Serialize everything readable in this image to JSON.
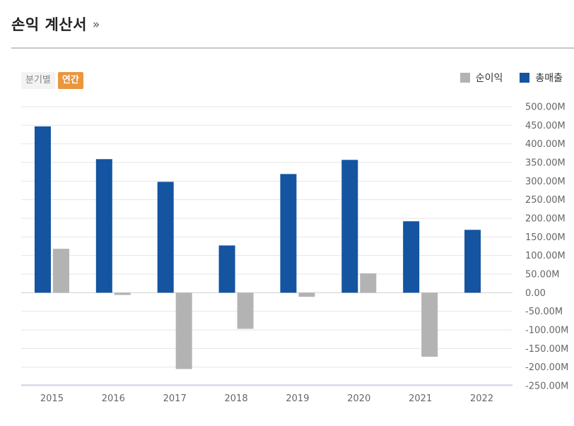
{
  "header": {
    "title": "손익 계산서",
    "more_label": "»"
  },
  "toggle": {
    "quarterly_label": "분기별",
    "annual_label": "연간"
  },
  "legend": [
    {
      "name": "순이익",
      "color": "#b3b3b3"
    },
    {
      "name": "총매출",
      "color": "#1454a0"
    }
  ],
  "chart_data": {
    "type": "bar",
    "title": "손익 계산서",
    "xlabel": "",
    "ylabel": "",
    "ylim": [
      -250,
      500
    ],
    "y_ticks": [
      500,
      450,
      400,
      350,
      300,
      250,
      200,
      150,
      100,
      50,
      0,
      -50,
      -100,
      -150,
      -200,
      -250
    ],
    "y_tick_labels": [
      "500.00M",
      "450.00M",
      "400.00M",
      "350.00M",
      "300.00M",
      "250.00M",
      "200.00M",
      "150.00M",
      "100.00M",
      "50.00M",
      "0.00",
      "-50.00M",
      "-100.00M",
      "-150.00M",
      "-200.00M",
      "-250.00M"
    ],
    "categories": [
      "2015",
      "2016",
      "2017",
      "2018",
      "2019",
      "2020",
      "2021",
      "2022"
    ],
    "series": [
      {
        "name": "총매출",
        "color": "#1454a0",
        "values": [
          447,
          359,
          298,
          127,
          319,
          357,
          192,
          169
        ]
      },
      {
        "name": "순이익",
        "color": "#b3b3b3",
        "values": [
          118,
          -6,
          -205,
          -97,
          -11,
          52,
          -172,
          null
        ]
      }
    ],
    "grid": true,
    "legend_position": "top-right"
  }
}
